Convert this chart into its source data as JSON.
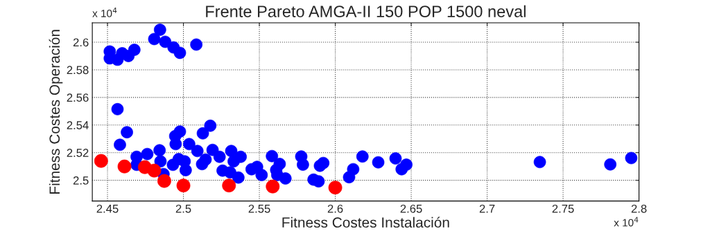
{
  "chart_data": {
    "type": "scatter",
    "title": "Frente Pareto AMGA-II 150 POP 1500 neval",
    "xlabel": "Fitness Costes Instalación",
    "ylabel": "Fitness Costes Operación",
    "annotations": [
      "x 10$^{4}$",
      "x 10$^{4}$"
    ],
    "xlim": [
      2.44,
      2.8
    ],
    "ylim": [
      2.485,
      2.614
    ],
    "xticks": [
      2.45,
      2.5,
      2.55,
      2.6,
      2.65,
      2.7,
      2.75,
      2.8
    ],
    "yticks": [
      2.5,
      2.52,
      2.54,
      2.56,
      2.58,
      2.6
    ],
    "grid": true,
    "marker": "circle",
    "series": [
      {
        "color": "#0000ff",
        "x": [
          2.4515,
          2.4515,
          2.4566,
          2.4597,
          2.4638,
          2.4677,
          2.4808,
          2.4846,
          2.488,
          2.4935,
          2.4977,
          2.5085,
          2.4566,
          2.4628,
          2.4582,
          2.4692,
          2.4692,
          2.4762,
          2.4843,
          2.4849,
          2.4869,
          2.4946,
          2.4977,
          2.4949,
          2.4969,
          2.4931,
          2.5008,
          2.5015,
          2.5038,
          2.5092,
          2.5128,
          2.5177,
          2.5146,
          2.5123,
          2.5192,
          2.5238,
          2.5258,
          2.5308,
          2.5315,
          2.5331,
          2.5362,
          2.5377,
          2.5449,
          2.5485,
          2.5515,
          2.5583,
          2.5634,
          2.5611,
          2.5618,
          2.5672,
          2.5776,
          2.5787,
          2.5857,
          2.589,
          2.5899,
          2.5921,
          2.6118,
          2.6091,
          2.6179,
          2.6283,
          2.6397,
          2.6437,
          2.6468,
          2.7347,
          2.7811,
          2.7949
        ],
        "values": [
          2.5933,
          2.5883,
          2.5873,
          2.592,
          2.59,
          2.5945,
          2.6023,
          2.609,
          2.6003,
          2.5962,
          2.5923,
          2.5983,
          2.5515,
          2.5348,
          2.5257,
          2.517,
          2.5112,
          2.519,
          2.5217,
          2.5137,
          2.5045,
          2.532,
          2.5353,
          2.5262,
          2.5153,
          2.5112,
          2.5137,
          2.5073,
          2.5262,
          2.5212,
          2.534,
          2.5395,
          2.515,
          2.5117,
          2.522,
          2.517,
          2.507,
          2.5057,
          2.5212,
          2.5137,
          2.502,
          2.517,
          2.508,
          2.5097,
          2.5038,
          2.5175,
          2.5118,
          2.5075,
          2.5038,
          2.5013,
          2.5172,
          2.5113,
          2.5005,
          2.4992,
          2.5105,
          2.5125,
          2.508,
          2.5022,
          2.5172,
          2.513,
          2.5158,
          2.508,
          2.5113,
          2.5132,
          2.5115,
          2.5161
        ]
      },
      {
        "color": "#ff0000",
        "x": [
          2.4458,
          2.4612,
          2.4746,
          2.4808,
          2.4874,
          2.5,
          2.53,
          2.5588,
          2.6
        ],
        "values": [
          2.514,
          2.51,
          2.5095,
          2.507,
          2.4995,
          2.4962,
          2.4962,
          2.4955,
          2.4947
        ]
      }
    ]
  }
}
